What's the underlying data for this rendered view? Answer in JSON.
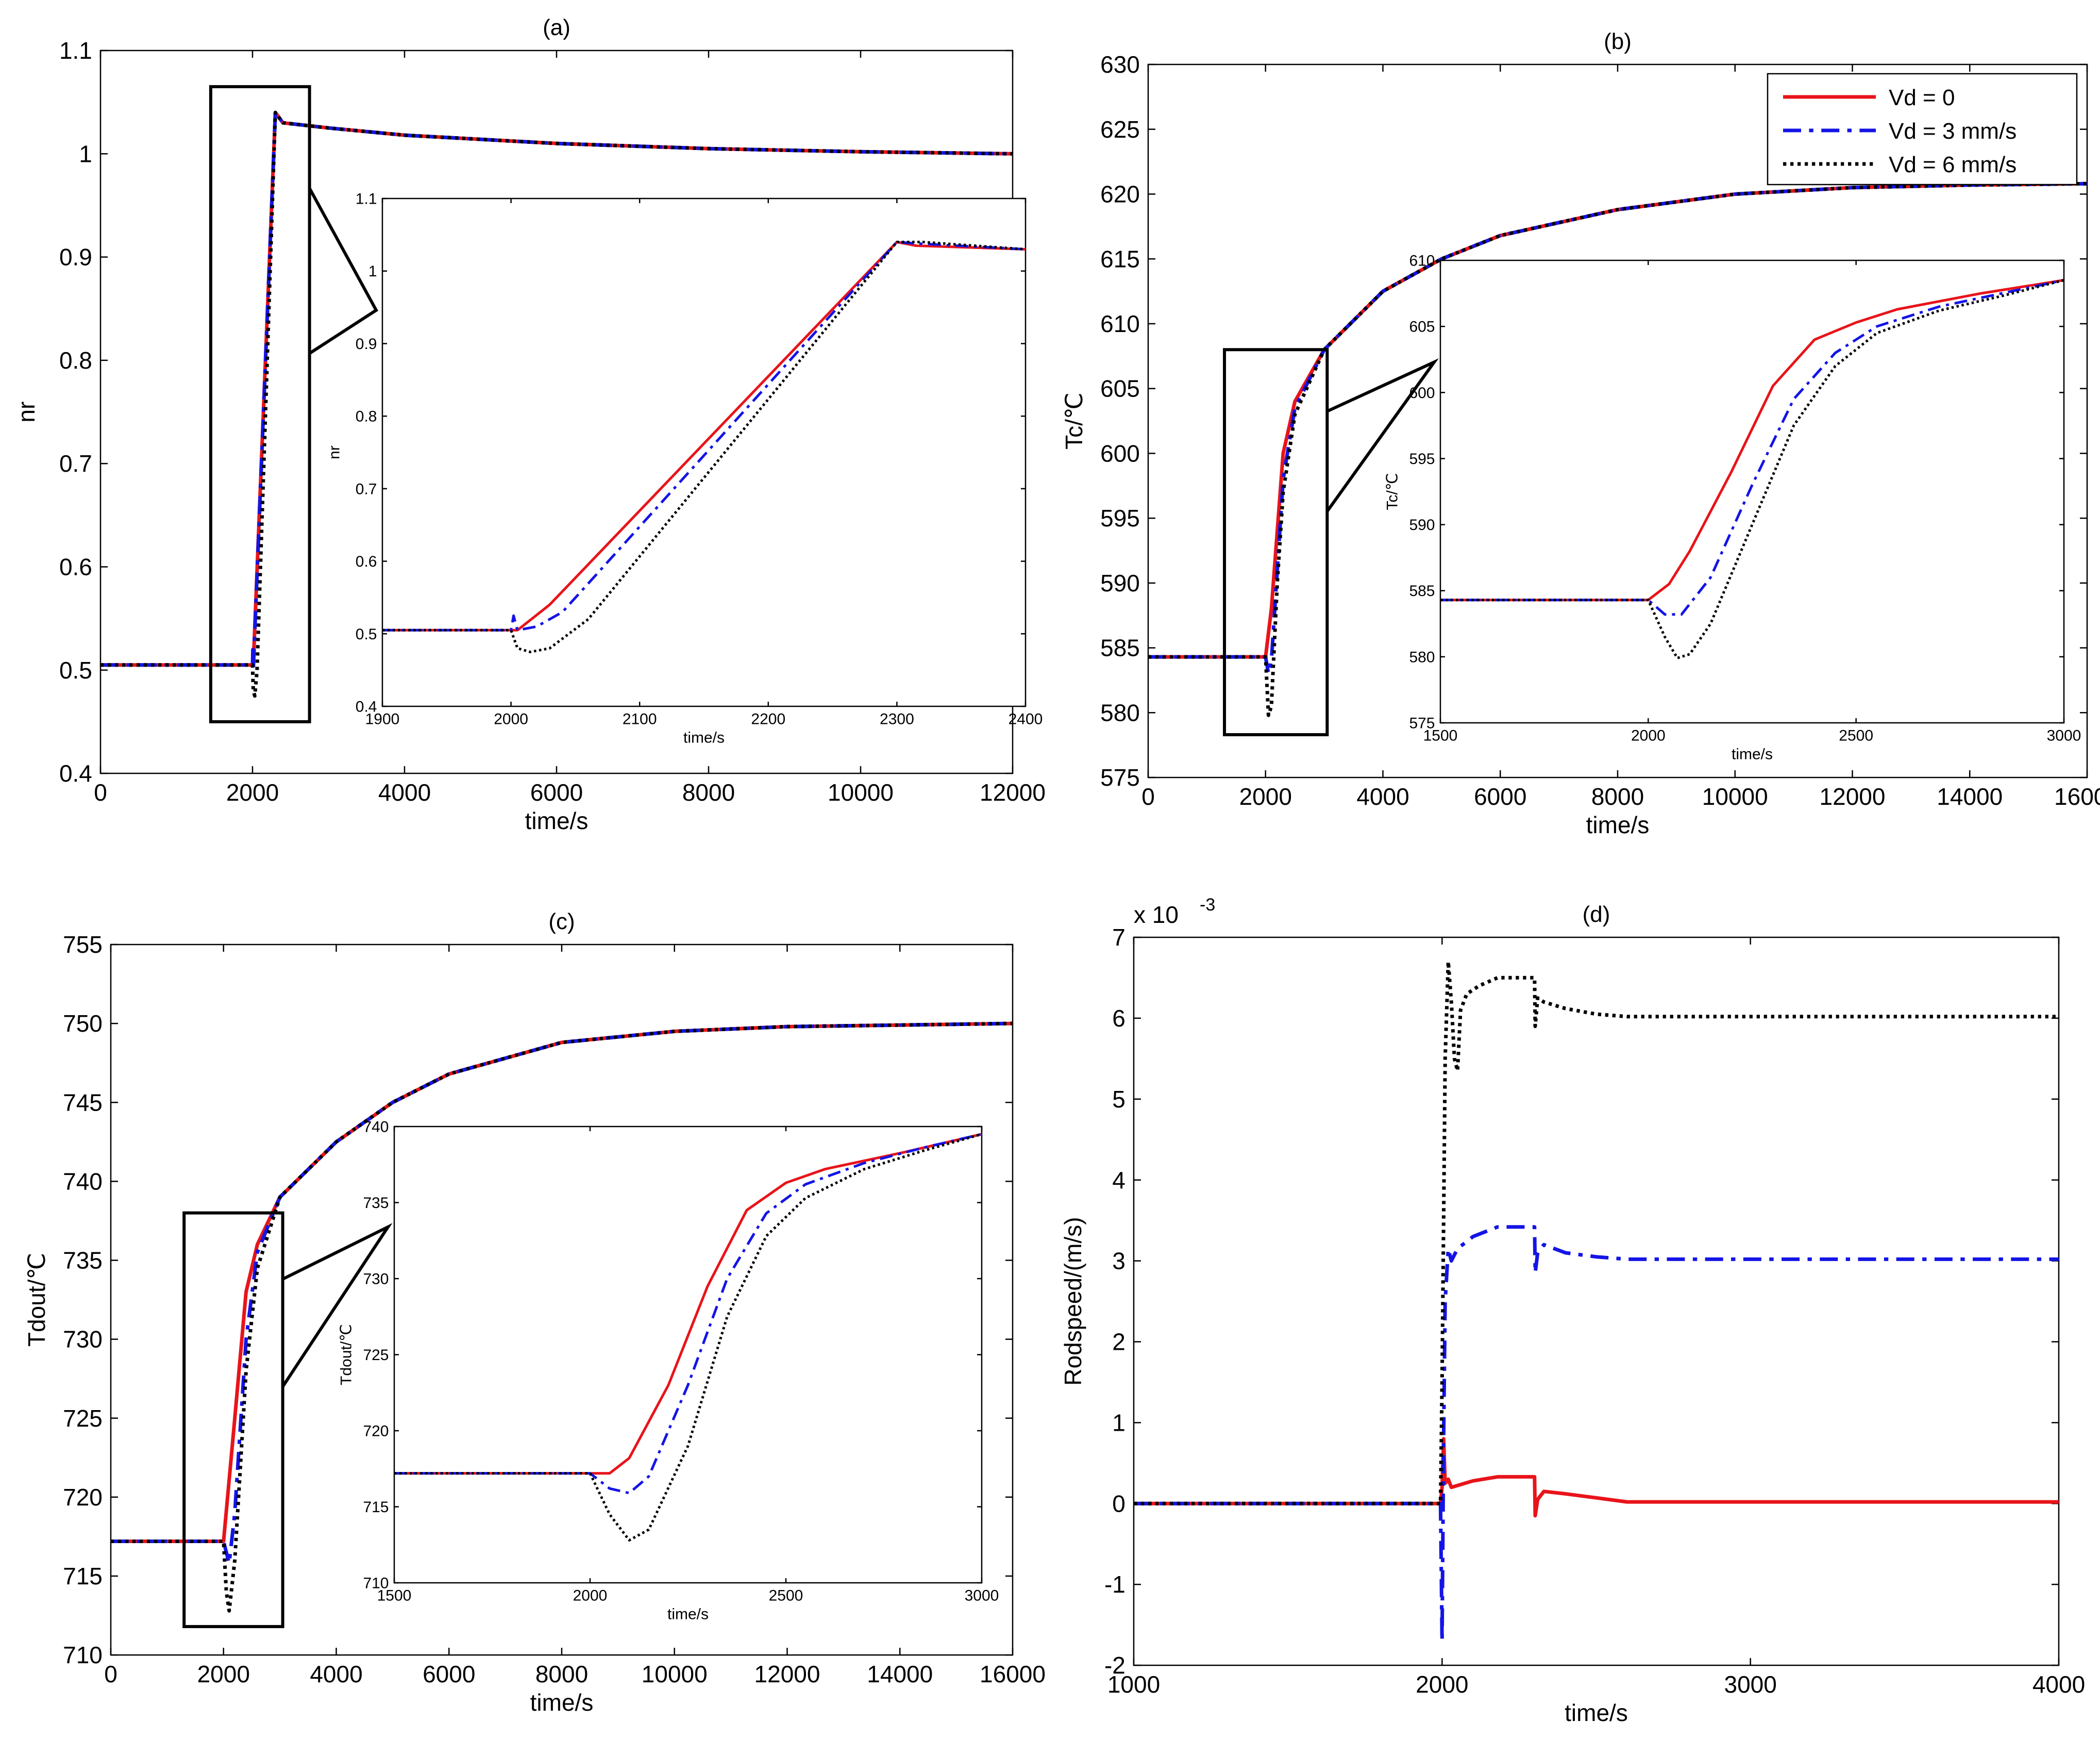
{
  "figure": {
    "legend": {
      "entries": [
        {
          "label": "Vd = 0",
          "color": "#e8141a",
          "style": "solid"
        },
        {
          "label": "Vd = 3 mm/s",
          "color": "#1414e6",
          "style": "dashdot"
        },
        {
          "label": "Vd = 6 mm/s",
          "color": "#000000",
          "style": "dotted"
        }
      ]
    }
  },
  "chart_data": [
    {
      "id": "a",
      "type": "line",
      "title": "(a)",
      "xlabel": "time/s",
      "ylabel": "nr",
      "xlim": [
        0,
        12000
      ],
      "ylim": [
        0.4,
        1.1
      ],
      "xticks": [
        0,
        2000,
        4000,
        6000,
        8000,
        10000,
        12000
      ],
      "yticks": [
        0.4,
        0.5,
        0.6,
        0.7,
        0.8,
        0.9,
        1,
        1.1
      ],
      "grid": false,
      "series": [
        {
          "name": "Vd = 0",
          "color": "#e8141a",
          "style": "solid",
          "x": [
            0,
            2000,
            2010,
            2300,
            2400,
            3000,
            4000,
            6000,
            8000,
            10000,
            12000
          ],
          "y": [
            0.505,
            0.505,
            0.505,
            1.04,
            1.03,
            1.025,
            1.018,
            1.01,
            1.005,
            1.002,
            1.0
          ]
        },
        {
          "name": "Vd = 3 mm/s",
          "color": "#1414e6",
          "style": "dashdot",
          "x": [
            0,
            2000,
            2005,
            2010,
            2300,
            2400,
            3000,
            4000,
            6000,
            8000,
            10000,
            12000
          ],
          "y": [
            0.505,
            0.505,
            0.52,
            0.5,
            1.04,
            1.03,
            1.025,
            1.018,
            1.01,
            1.005,
            1.002,
            1.0
          ]
        },
        {
          "name": "Vd = 6 mm/s",
          "color": "#000000",
          "style": "dotted",
          "x": [
            0,
            2000,
            2010,
            2030,
            2060,
            2300,
            2400,
            3000,
            4000,
            6000,
            8000,
            10000,
            12000
          ],
          "y": [
            0.505,
            0.505,
            0.48,
            0.475,
            0.5,
            1.04,
            1.03,
            1.025,
            1.018,
            1.01,
            1.005,
            1.002,
            1.0
          ]
        }
      ],
      "inset": {
        "xlabel": "time/s",
        "ylabel": "nr",
        "xlim": [
          1900,
          2400
        ],
        "ylim": [
          0.4,
          1.1
        ],
        "xticks": [
          1900,
          2000,
          2100,
          2200,
          2300,
          2400
        ],
        "yticks": [
          0.4,
          0.5,
          0.6,
          0.7,
          0.8,
          0.9,
          1,
          1.1
        ],
        "series": [
          {
            "name": "Vd = 0",
            "color": "#e8141a",
            "style": "solid",
            "x": [
              1900,
              2005,
              2030,
              2300,
              2315,
              2400
            ],
            "y": [
              0.505,
              0.505,
              0.54,
              1.04,
              1.035,
              1.03
            ]
          },
          {
            "name": "Vd = 3 mm/s",
            "color": "#1414e6",
            "style": "dashdot",
            "x": [
              1900,
              2000,
              2002,
              2005,
              2020,
              2040,
              2300,
              2315,
              2400
            ],
            "y": [
              0.505,
              0.505,
              0.525,
              0.505,
              0.51,
              0.53,
              1.04,
              1.038,
              1.03
            ]
          },
          {
            "name": "Vd = 6 mm/s",
            "color": "#000000",
            "style": "dotted",
            "x": [
              1900,
              2000,
              2005,
              2015,
              2030,
              2060,
              2300,
              2320,
              2400
            ],
            "y": [
              0.505,
              0.505,
              0.48,
              0.475,
              0.48,
              0.52,
              1.04,
              1.04,
              1.03
            ]
          }
        ]
      },
      "zoom_box": {
        "x": [
          1450,
          2750
        ],
        "y": [
          0.45,
          1.065
        ]
      }
    },
    {
      "id": "b",
      "type": "line",
      "title": "(b)",
      "xlabel": "time/s",
      "ylabel": "Tc/℃",
      "xlim": [
        0,
        16000
      ],
      "ylim": [
        575,
        630
      ],
      "xticks": [
        0,
        2000,
        4000,
        6000,
        8000,
        10000,
        12000,
        14000,
        16000
      ],
      "yticks": [
        575,
        580,
        585,
        590,
        595,
        600,
        605,
        610,
        615,
        620,
        625,
        630
      ],
      "grid": false,
      "series": [
        {
          "name": "Vd = 0",
          "color": "#e8141a",
          "style": "solid",
          "x": [
            0,
            2000,
            2100,
            2300,
            2500,
            3000,
            4000,
            5000,
            6000,
            8000,
            10000,
            12000,
            14000,
            16000
          ],
          "y": [
            584.3,
            584.3,
            588,
            600,
            604,
            608,
            612.5,
            615,
            616.8,
            618.8,
            620,
            620.5,
            620.7,
            620.8
          ]
        },
        {
          "name": "Vd = 3 mm/s",
          "color": "#1414e6",
          "style": "dashdot",
          "x": [
            0,
            2000,
            2050,
            2100,
            2300,
            2500,
            3000,
            4000,
            5000,
            6000,
            8000,
            10000,
            12000,
            14000,
            16000
          ],
          "y": [
            584.3,
            584.3,
            583,
            584,
            598,
            603.5,
            608,
            612.5,
            615,
            616.8,
            618.8,
            620,
            620.5,
            620.7,
            620.8
          ]
        },
        {
          "name": "Vd = 6 mm/s",
          "color": "#000000",
          "style": "dotted",
          "x": [
            0,
            2000,
            2050,
            2100,
            2200,
            2300,
            2500,
            3000,
            4000,
            5000,
            6000,
            8000,
            10000,
            12000,
            14000,
            16000
          ],
          "y": [
            584.3,
            584.3,
            579.8,
            580.5,
            590,
            597,
            603,
            608,
            612.5,
            615,
            616.8,
            618.8,
            620,
            620.5,
            620.7,
            620.8
          ]
        }
      ],
      "inset": {
        "xlabel": "time/s",
        "ylabel": "Tc/℃",
        "xlim": [
          1500,
          3000
        ],
        "ylim": [
          575,
          610
        ],
        "xticks": [
          1500,
          2000,
          2500,
          3000
        ],
        "yticks": [
          575,
          580,
          585,
          590,
          595,
          600,
          605,
          610
        ],
        "series": [
          {
            "name": "Vd = 0",
            "color": "#e8141a",
            "style": "solid",
            "x": [
              1500,
              2000,
              2050,
              2100,
              2200,
              2300,
              2400,
              2500,
              2600,
              2800,
              3000
            ],
            "y": [
              584.3,
              584.3,
              585.5,
              588,
              594,
              600.5,
              604,
              605.3,
              606.3,
              607.5,
              608.5
            ]
          },
          {
            "name": "Vd = 3 mm/s",
            "color": "#1414e6",
            "style": "dashdot",
            "x": [
              1500,
              2000,
              2040,
              2080,
              2150,
              2250,
              2350,
              2450,
              2550,
              2700,
              2850,
              3000
            ],
            "y": [
              584.3,
              584.3,
              583.2,
              583.2,
              586,
              593,
              599.5,
              603,
              605,
              606.5,
              607.5,
              608.5
            ]
          },
          {
            "name": "Vd = 6 mm/s",
            "color": "#000000",
            "style": "dotted",
            "x": [
              1500,
              2000,
              2040,
              2070,
              2100,
              2150,
              2250,
              2350,
              2450,
              2550,
              2700,
              2850,
              3000
            ],
            "y": [
              584.3,
              584.3,
              581.5,
              579.9,
              580.2,
              582.5,
              590,
              597.5,
              602,
              604.5,
              606.2,
              607.3,
              608.5
            ]
          }
        ]
      },
      "zoom_box": {
        "x": [
          1300,
          3050
        ],
        "y": [
          578.3,
          608
        ]
      }
    },
    {
      "id": "c",
      "type": "line",
      "title": "(c)",
      "xlabel": "time/s",
      "ylabel": "Tdout/℃",
      "xlim": [
        0,
        16000
      ],
      "ylim": [
        710,
        755
      ],
      "xticks": [
        0,
        2000,
        4000,
        6000,
        8000,
        10000,
        12000,
        14000,
        16000
      ],
      "yticks": [
        710,
        715,
        720,
        725,
        730,
        735,
        740,
        745,
        750,
        755
      ],
      "grid": false,
      "series": [
        {
          "name": "Vd = 0",
          "color": "#e8141a",
          "style": "solid",
          "x": [
            0,
            2000,
            2200,
            2400,
            2600,
            3000,
            4000,
            5000,
            6000,
            8000,
            10000,
            12000,
            14000,
            16000
          ],
          "y": [
            717.2,
            717.2,
            725,
            733,
            736,
            739,
            742.5,
            745,
            746.8,
            748.8,
            749.5,
            749.8,
            749.9,
            750
          ]
        },
        {
          "name": "Vd = 3 mm/s",
          "color": "#1414e6",
          "style": "dashdot",
          "x": [
            0,
            2000,
            2100,
            2200,
            2400,
            2600,
            3000,
            4000,
            5000,
            6000,
            8000,
            10000,
            12000,
            14000,
            16000
          ],
          "y": [
            717.2,
            717.2,
            715.8,
            719,
            730,
            735.5,
            739,
            742.5,
            745,
            746.8,
            748.8,
            749.5,
            749.8,
            749.9,
            750
          ]
        },
        {
          "name": "Vd = 6 mm/s",
          "color": "#000000",
          "style": "dotted",
          "x": [
            0,
            2000,
            2050,
            2100,
            2200,
            2400,
            2600,
            3000,
            4000,
            5000,
            6000,
            8000,
            10000,
            12000,
            14000,
            16000
          ],
          "y": [
            717.2,
            717.2,
            714,
            712.8,
            716,
            728,
            734.5,
            739,
            742.5,
            745,
            746.8,
            748.8,
            749.5,
            749.8,
            749.9,
            750
          ]
        }
      ],
      "inset": {
        "xlabel": "time/s",
        "ylabel": "Tdout/℃",
        "xlim": [
          1500,
          3000
        ],
        "ylim": [
          710,
          740
        ],
        "xticks": [
          1500,
          2000,
          2500,
          3000
        ],
        "yticks": [
          710,
          715,
          720,
          725,
          730,
          735,
          740
        ],
        "series": [
          {
            "name": "Vd = 0",
            "color": "#e8141a",
            "style": "solid",
            "x": [
              1500,
              2050,
              2100,
              2200,
              2300,
              2400,
              2500,
              2600,
              2800,
              3000
            ],
            "y": [
              717.2,
              717.2,
              718.2,
              723,
              729.5,
              734.5,
              736.3,
              737.2,
              738.3,
              739.5
            ]
          },
          {
            "name": "Vd = 3 mm/s",
            "color": "#1414e6",
            "style": "dashdot",
            "x": [
              1500,
              2000,
              2050,
              2100,
              2150,
              2250,
              2350,
              2450,
              2550,
              2700,
              2850,
              3000
            ],
            "y": [
              717.2,
              717.2,
              716.2,
              715.9,
              717,
              723,
              730,
              734.3,
              736.2,
              737.6,
              738.6,
              739.5
            ]
          },
          {
            "name": "Vd = 6 mm/s",
            "color": "#000000",
            "style": "dotted",
            "x": [
              1500,
              2000,
              2050,
              2100,
              2150,
              2250,
              2350,
              2450,
              2550,
              2700,
              2850,
              3000
            ],
            "y": [
              717.2,
              717.2,
              714.5,
              712.8,
              713.5,
              719,
              727.5,
              732.8,
              735.3,
              737.2,
              738.4,
              739.5
            ]
          }
        ]
      },
      "zoom_box": {
        "x": [
          1300,
          3050
        ],
        "y": [
          711.8,
          738
        ]
      }
    },
    {
      "id": "d",
      "type": "line",
      "title": "(d)",
      "xlabel": "time/s",
      "ylabel": "Rodspeed/(m/s)",
      "y_multiplier": "x 10",
      "y_multiplier_exp": "-3",
      "xlim": [
        1000,
        4000
      ],
      "ylim": [
        -2,
        7
      ],
      "xticks": [
        1000,
        2000,
        3000,
        4000
      ],
      "yticks": [
        -2,
        -1,
        0,
        1,
        2,
        3,
        4,
        5,
        6,
        7
      ],
      "grid": false,
      "series": [
        {
          "name": "Vd = 0",
          "color": "#e8141a",
          "style": "solid",
          "x": [
            1000,
            1995,
            2000,
            2005,
            2010,
            2020,
            2030,
            2100,
            2180,
            2300,
            2302,
            2310,
            2330,
            2400,
            2500,
            2600,
            3000,
            4000
          ],
          "y": [
            0,
            0,
            0.2,
            0.8,
            0.25,
            0.3,
            0.2,
            0.28,
            0.33,
            0.33,
            -0.15,
            0.05,
            0.15,
            0.12,
            0.07,
            0.02,
            0.02,
            0.02
          ]
        },
        {
          "name": "Vd = 3 mm/s",
          "color": "#1414e6",
          "style": "dashdot",
          "x": [
            1000,
            1995,
            2000,
            2005,
            2010,
            2020,
            2030,
            2050,
            2100,
            2180,
            2300,
            2302,
            2310,
            2330,
            2400,
            2500,
            2600,
            3000,
            4000
          ],
          "y": [
            0,
            0,
            -1.7,
            0.8,
            2.5,
            3.15,
            3.0,
            3.15,
            3.3,
            3.42,
            3.42,
            2.85,
            3.1,
            3.2,
            3.1,
            3.05,
            3.02,
            3.02,
            3.02
          ]
        },
        {
          "name": "Vd = 6 mm/s",
          "color": "#000000",
          "style": "dotted",
          "x": [
            1000,
            1995,
            2000,
            2005,
            2010,
            2020,
            2030,
            2040,
            2050,
            2060,
            2080,
            2120,
            2180,
            2300,
            2302,
            2310,
            2330,
            2400,
            2500,
            2600,
            3000,
            4000
          ],
          "y": [
            0,
            0,
            1.5,
            3.5,
            5.5,
            6.7,
            6.2,
            5.5,
            5.35,
            6.1,
            6.3,
            6.4,
            6.5,
            6.5,
            5.9,
            6.25,
            6.2,
            6.12,
            6.05,
            6.02,
            6.02,
            6.02
          ]
        }
      ]
    }
  ]
}
